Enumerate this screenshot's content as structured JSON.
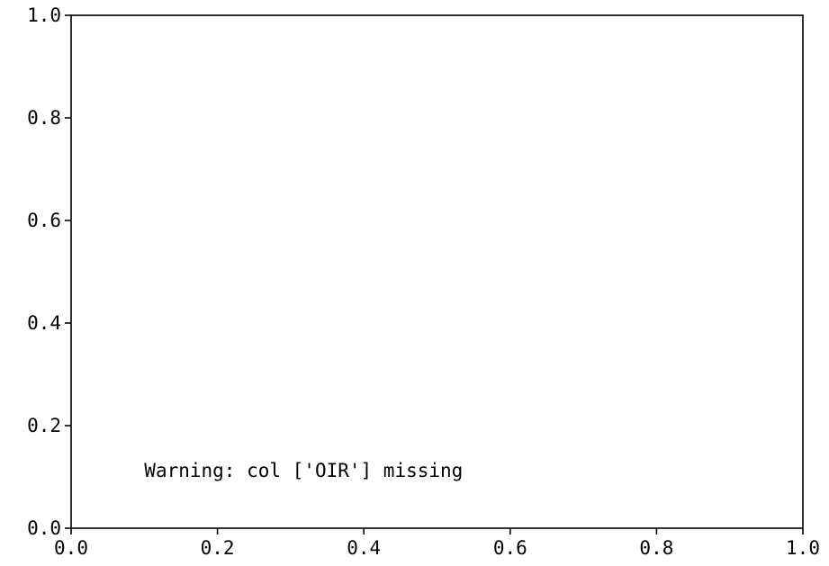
{
  "chart_data": {
    "type": "scatter",
    "title": "",
    "xlabel": "",
    "ylabel": "",
    "xlim": [
      0.0,
      1.0
    ],
    "ylim": [
      0.0,
      1.0
    ],
    "x_ticks": [
      "0.0",
      "0.2",
      "0.4",
      "0.6",
      "0.8",
      "1.0"
    ],
    "y_ticks": [
      "0.0",
      "0.2",
      "0.4",
      "0.6",
      "0.8",
      "1.0"
    ],
    "grid": false,
    "series": [],
    "annotations": [
      {
        "text": "Warning: col ['OIR'] missing",
        "x": 0.1,
        "y": 0.1
      }
    ]
  }
}
